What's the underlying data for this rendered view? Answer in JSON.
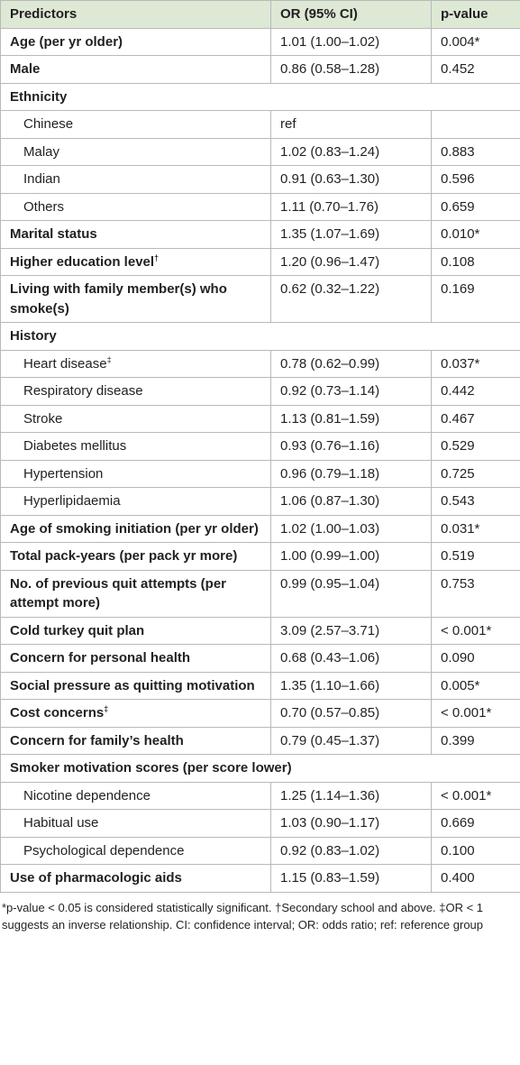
{
  "header": {
    "predictor": "Predictors",
    "or": "OR (95% CI)",
    "p": "p-value"
  },
  "rows": [
    {
      "kind": "main",
      "predictor": "Age (per yr older)",
      "or": "1.01 (1.00–1.02)",
      "p": "0.004*"
    },
    {
      "kind": "main",
      "predictor": "Male",
      "or": "0.86 (0.58–1.28)",
      "p": "0.452"
    },
    {
      "kind": "group",
      "predictor": "Ethnicity"
    },
    {
      "kind": "sub",
      "predictor": "Chinese",
      "or": "ref"
    },
    {
      "kind": "sub",
      "predictor": "Malay",
      "or": "1.02 (0.83–1.24)",
      "p": "0.883"
    },
    {
      "kind": "sub",
      "predictor": "Indian",
      "or": "0.91 (0.63–1.30)",
      "p": "0.596"
    },
    {
      "kind": "sub",
      "predictor": "Others",
      "or": "1.11 (0.70–1.76)",
      "p": "0.659"
    },
    {
      "kind": "main",
      "predictor": "Marital status",
      "or": "1.35 (1.07–1.69)",
      "p": "0.010*"
    },
    {
      "kind": "main",
      "predictor": "Higher education level",
      "sup": "†",
      "or": "1.20 (0.96–1.47)",
      "p": "0.108"
    },
    {
      "kind": "main",
      "predictor": "Living with family member(s) who smoke(s)",
      "or": "0.62 (0.32–1.22)",
      "p": "0.169"
    },
    {
      "kind": "group",
      "predictor": "History"
    },
    {
      "kind": "sub",
      "predictor": "Heart disease",
      "sup": "‡",
      "or": "0.78 (0.62–0.99)",
      "p": "0.037*"
    },
    {
      "kind": "sub",
      "predictor": "Respiratory disease",
      "or": "0.92 (0.73–1.14)",
      "p": "0.442"
    },
    {
      "kind": "sub",
      "predictor": "Stroke",
      "or": "1.13 (0.81–1.59)",
      "p": "0.467"
    },
    {
      "kind": "sub",
      "predictor": "Diabetes mellitus",
      "or": "0.93 (0.76–1.16)",
      "p": "0.529"
    },
    {
      "kind": "sub",
      "predictor": "Hypertension",
      "or": "0.96 (0.79–1.18)",
      "p": "0.725"
    },
    {
      "kind": "sub",
      "predictor": "Hyperlipidaemia",
      "or": "1.06 (0.87–1.30)",
      "p": "0.543"
    },
    {
      "kind": "main",
      "predictor": "Age of smoking initiation (per yr older)",
      "or": "1.02 (1.00–1.03)",
      "p": "0.031*"
    },
    {
      "kind": "main",
      "predictor": "Total pack-years (per pack yr more)",
      "or": "1.00 (0.99–1.00)",
      "p": "0.519"
    },
    {
      "kind": "main",
      "predictor": "No. of previous quit attempts (per attempt more)",
      "or": "0.99 (0.95–1.04)",
      "p": "0.753"
    },
    {
      "kind": "main",
      "predictor": "Cold turkey quit plan",
      "or": "3.09 (2.57–3.71)",
      "p": "< 0.001*"
    },
    {
      "kind": "main",
      "predictor": "Concern for personal health",
      "or": "0.68 (0.43–1.06)",
      "p": "0.090"
    },
    {
      "kind": "main",
      "predictor": "Social pressure as quitting motivation",
      "or": "1.35 (1.10–1.66)",
      "p": "0.005*"
    },
    {
      "kind": "main",
      "predictor": "Cost concerns",
      "sup": "‡",
      "or": "0.70 (0.57–0.85)",
      "p": "< 0.001*"
    },
    {
      "kind": "main",
      "predictor": "Concern for family’s health",
      "or": "0.79 (0.45–1.37)",
      "p": "0.399"
    },
    {
      "kind": "group",
      "predictor": "Smoker motivation scores (per score lower)"
    },
    {
      "kind": "sub",
      "predictor": "Nicotine dependence",
      "or": "1.25 (1.14–1.36)",
      "p": "< 0.001*"
    },
    {
      "kind": "sub",
      "predictor": "Habitual use",
      "or": "1.03 (0.90–1.17)",
      "p": "0.669"
    },
    {
      "kind": "sub",
      "predictor": "Psychological dependence",
      "or": "0.92 (0.83–1.02)",
      "p": "0.100"
    },
    {
      "kind": "main",
      "predictor": "Use of pharmacologic aids",
      "or": "1.15 (0.83–1.59)",
      "p": "0.400"
    }
  ],
  "footnote": "*p-value < 0.05 is considered statistically significant. †Secondary school and above. ‡OR < 1 suggests an inverse relationship. CI: confidence interval; OR: odds ratio; ref: reference group"
}
